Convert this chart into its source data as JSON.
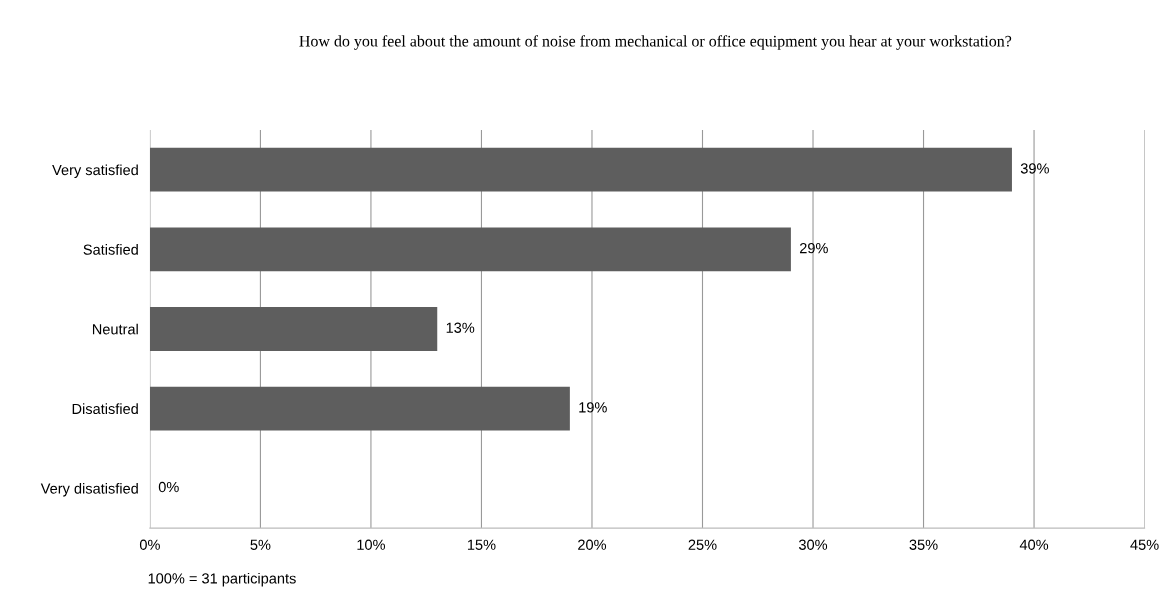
{
  "chart_data": {
    "type": "bar",
    "orientation": "horizontal",
    "title": "How do you feel about the amount of noise from mechanical or office equipment you hear at your workstation?",
    "categories": [
      "Very satisfied",
      "Satisfied",
      "Neutral",
      "Disatisfied",
      "Very disatisfied"
    ],
    "values": [
      39,
      29,
      13,
      19,
      0
    ],
    "value_labels": [
      "39%",
      "29%",
      "13%",
      "19%",
      "0%"
    ],
    "color": "#5e5e5e",
    "xlim": [
      0,
      45
    ],
    "xticks": [
      {
        "value": 0,
        "label": "0%"
      },
      {
        "value": 5,
        "label": "5%"
      },
      {
        "value": 10,
        "label": "10%"
      },
      {
        "value": 15,
        "label": "15%"
      },
      {
        "value": 20,
        "label": "20%"
      },
      {
        "value": 25,
        "label": "25%"
      },
      {
        "value": 30,
        "label": "30%"
      },
      {
        "value": 35,
        "label": "35%"
      },
      {
        "value": 40,
        "label": "40%"
      },
      {
        "value": 45,
        "label": "45%"
      }
    ],
    "grid": "x",
    "annotations": [
      "100% = 31 participants"
    ]
  }
}
